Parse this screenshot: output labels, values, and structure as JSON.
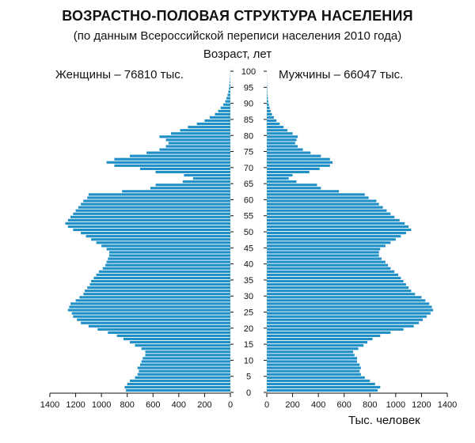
{
  "chart_data": {
    "type": "bar",
    "orientation": "horizontal",
    "subtype": "population-pyramid",
    "title": "ВОЗРАСТНО-ПОЛОВАЯ СТРУКТУРА НАСЕЛЕНИЯ",
    "subtitle": "(по данным Всероссийской переписи населения 2010 года)",
    "ylabel": "Возраст, лет",
    "xlabel": "Тыс. человек",
    "women_label": "Женщины – 76810 тыс.",
    "men_label": "Мужчины – 66047 тыс.",
    "bar_color": "#1f8fc6",
    "xlim": [
      0,
      1400
    ],
    "x_ticks_left": [
      "1400",
      "1200",
      "1000",
      "800",
      "600",
      "400",
      "200",
      "0"
    ],
    "x_ticks_right": [
      "0",
      "200",
      "400",
      "600",
      "800",
      "1000",
      "1200",
      "1400"
    ],
    "x_tick_values": [
      0,
      200,
      400,
      600,
      800,
      1000,
      1200,
      1400
    ],
    "age_ticks": [
      "100",
      "95",
      "90",
      "85",
      "80",
      "75",
      "70",
      "65",
      "60",
      "55",
      "50",
      "45",
      "40",
      "35",
      "30",
      "25",
      "20",
      "15",
      "10",
      "5",
      "0"
    ],
    "age_tick_values": [
      100,
      95,
      90,
      85,
      80,
      75,
      70,
      65,
      60,
      55,
      50,
      45,
      40,
      35,
      30,
      25,
      20,
      15,
      10,
      5,
      0
    ],
    "ages": [
      0,
      1,
      2,
      3,
      4,
      5,
      6,
      7,
      8,
      9,
      10,
      11,
      12,
      13,
      14,
      15,
      16,
      17,
      18,
      19,
      20,
      21,
      22,
      23,
      24,
      25,
      26,
      27,
      28,
      29,
      30,
      31,
      32,
      33,
      34,
      35,
      36,
      37,
      38,
      39,
      40,
      41,
      42,
      43,
      44,
      45,
      46,
      47,
      48,
      49,
      50,
      51,
      52,
      53,
      54,
      55,
      56,
      57,
      58,
      59,
      60,
      61,
      62,
      63,
      64,
      65,
      66,
      67,
      68,
      69,
      70,
      71,
      72,
      73,
      74,
      75,
      76,
      77,
      78,
      79,
      80,
      81,
      82,
      83,
      84,
      85,
      86,
      87,
      88,
      89,
      90,
      91,
      92,
      93,
      94,
      95,
      96,
      97,
      98,
      99,
      100
    ],
    "series": [
      {
        "name": "Женщины – 76810 тыс.",
        "values": [
          810,
          820,
          800,
          780,
          740,
          720,
          710,
          720,
          700,
          690,
          680,
          660,
          660,
          690,
          740,
          780,
          830,
          880,
          950,
          1030,
          1100,
          1160,
          1190,
          1220,
          1230,
          1260,
          1250,
          1240,
          1200,
          1170,
          1140,
          1130,
          1110,
          1090,
          1080,
          1060,
          1040,
          1020,
          990,
          970,
          960,
          950,
          940,
          940,
          960,
          1000,
          1040,
          1080,
          1120,
          1160,
          1220,
          1260,
          1280,
          1260,
          1240,
          1220,
          1200,
          1180,
          1160,
          1140,
          1110,
          1100,
          840,
          620,
          580,
          370,
          290,
          360,
          580,
          700,
          900,
          960,
          900,
          780,
          650,
          550,
          500,
          480,
          500,
          550,
          460,
          390,
          330,
          260,
          200,
          160,
          120,
          95,
          75,
          55,
          40,
          30,
          22,
          16,
          11,
          8,
          5,
          3,
          2,
          1,
          1
        ]
      },
      {
        "name": "Мужчины – 66047 тыс.",
        "values": [
          860,
          880,
          840,
          800,
          760,
          730,
          720,
          730,
          720,
          700,
          700,
          680,
          670,
          710,
          750,
          780,
          820,
          880,
          960,
          1060,
          1140,
          1180,
          1210,
          1240,
          1270,
          1290,
          1280,
          1260,
          1230,
          1200,
          1150,
          1120,
          1100,
          1080,
          1060,
          1040,
          1020,
          990,
          960,
          940,
          920,
          890,
          870,
          870,
          880,
          920,
          960,
          1000,
          1040,
          1080,
          1120,
          1100,
          1070,
          1030,
          990,
          960,
          930,
          900,
          870,
          850,
          790,
          760,
          560,
          420,
          390,
          230,
          170,
          200,
          330,
          410,
          490,
          510,
          490,
          420,
          340,
          280,
          240,
          220,
          230,
          240,
          200,
          160,
          130,
          100,
          75,
          55,
          40,
          30,
          22,
          16,
          11,
          8,
          5,
          4,
          3,
          2,
          1,
          1,
          1,
          0,
          0
        ]
      }
    ]
  }
}
